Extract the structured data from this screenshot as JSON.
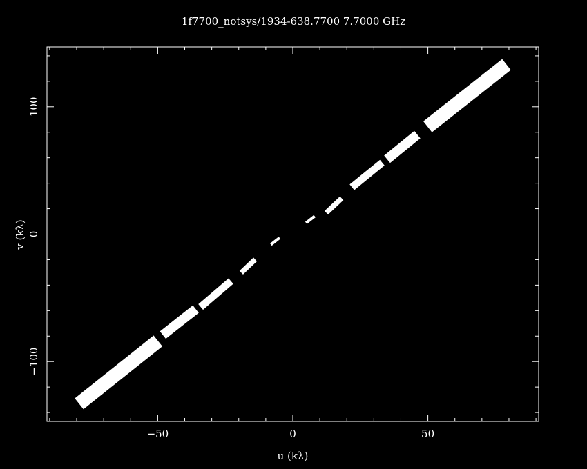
{
  "chart_data": {
    "type": "scatter",
    "title": "1f7700_notsys/1934-638.7700  7.7000 GHz",
    "xlabel": "u (kλ)",
    "ylabel": "v (kλ)",
    "xlim": [
      -91,
      91
    ],
    "ylim": [
      -147,
      147
    ],
    "xticks": [
      -50,
      0,
      50
    ],
    "yticks": [
      -100,
      0,
      100
    ],
    "grid": false,
    "colors": {
      "background": "#000000",
      "foreground": "#ffffff"
    },
    "uv_segments": [
      {
        "u1": 5.0,
        "v1": 9.0,
        "u2": 8.0,
        "v2": 14.0,
        "width": 1.0
      },
      {
        "u1": 12.5,
        "v1": 17.0,
        "u2": 18.0,
        "v2": 28.0,
        "width": 2.0
      },
      {
        "u1": 22.0,
        "v1": 37.0,
        "u2": 33.0,
        "v2": 56.0,
        "width": 3.0
      },
      {
        "u1": 35.0,
        "v1": 59.0,
        "u2": 46.0,
        "v2": 78.0,
        "width": 4.0
      },
      {
        "u1": 50.0,
        "v1": 84.5,
        "u2": 79.0,
        "v2": 133.0,
        "width": 6.0
      },
      {
        "u1": -8.0,
        "v1": -8.0,
        "u2": -5.0,
        "v2": -3.0,
        "width": 1.0
      },
      {
        "u1": -19.0,
        "v1": -30.0,
        "u2": -14.0,
        "v2": -20.0,
        "width": 2.0
      },
      {
        "u1": -34.0,
        "v1": -57.0,
        "u2": -23.0,
        "v2": -37.0,
        "width": 3.0
      },
      {
        "u1": -48.0,
        "v1": -79.0,
        "u2": -36.0,
        "v2": -59.0,
        "width": 4.0
      },
      {
        "u1": -79.0,
        "v1": -133.0,
        "u2": -50.0,
        "v2": -84.0,
        "width": 6.0
      }
    ]
  }
}
